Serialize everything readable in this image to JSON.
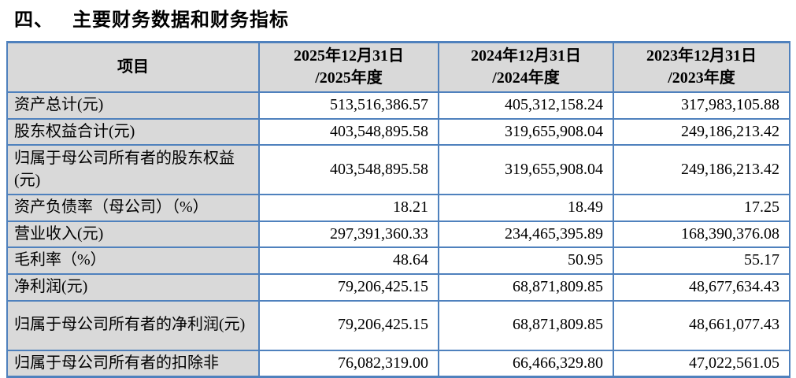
{
  "heading": {
    "number": "四、",
    "text": "主要财务数据和财务指标"
  },
  "colors": {
    "table_border": "#4f81bd",
    "header_fill": "#d9d9d9",
    "label_column_fill": "#d9d9d9",
    "value_cell_fill": "#ffffff",
    "text": "#000000"
  },
  "table": {
    "header": {
      "item_label": "项目",
      "col_2025": "2025年12月31日\n/2025年度",
      "col_2024": "2024年12月31日\n/2024年度",
      "col_2023": "2023年12月31日\n/2023年度"
    },
    "rows": [
      {
        "label": "资产总计(元)",
        "v2025": "513,516,386.57",
        "v2024": "405,312,158.24",
        "v2023": "317,983,105.88"
      },
      {
        "label": "股东权益合计(元)",
        "v2025": "403,548,895.58",
        "v2024": "319,655,908.04",
        "v2023": "249,186,213.42"
      },
      {
        "label": "归属于母公司所有者的股东权益(元)",
        "v2025": "403,548,895.58",
        "v2024": "319,655,908.04",
        "v2023": "249,186,213.42"
      },
      {
        "label": "资产负债率（母公司）（%）",
        "v2025": "18.21",
        "v2024": "18.49",
        "v2023": "17.25"
      },
      {
        "label": "营业收入(元)",
        "v2025": "297,391,360.33",
        "v2024": "234,465,395.89",
        "v2023": "168,390,376.08"
      },
      {
        "label": "毛利率（%）",
        "v2025": "48.64",
        "v2024": "50.95",
        "v2023": "55.17"
      },
      {
        "label": "净利润(元)",
        "v2025": "79,206,425.15",
        "v2024": "68,871,809.85",
        "v2023": "48,677,634.43"
      },
      {
        "label": "归属于母公司所有者的净利润(元)",
        "v2025": "79,206,425.15",
        "v2024": "68,871,809.85",
        "v2023": "48,661,077.43"
      },
      {
        "label": "归属于母公司所有者的扣除非",
        "v2025": "76,082,319.00",
        "v2024": "66,466,329.80",
        "v2023": "47,022,561.05"
      }
    ]
  }
}
